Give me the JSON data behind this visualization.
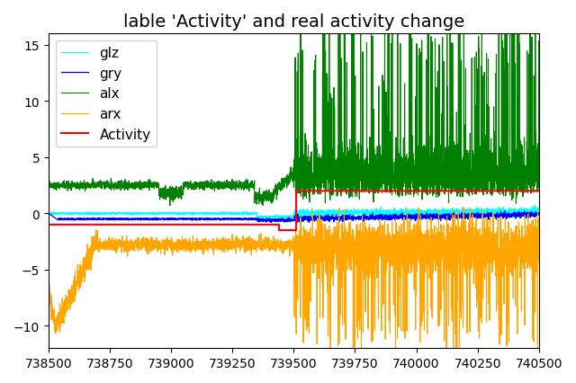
{
  "title": "lable 'Activity' and real activity change",
  "xlabel": "",
  "ylabel": "",
  "xlim": [
    738500,
    740500
  ],
  "ylim": [
    -12,
    16
  ],
  "x_start": 738500,
  "x_end": 740500,
  "n_points": 4000,
  "legend_labels": [
    "glz",
    "gry",
    "alx",
    "arx",
    "Activity"
  ],
  "legend_colors": [
    "cyan",
    "blue",
    "green",
    "orange",
    "red"
  ],
  "title_fontsize": 14,
  "tick_fontsize": 10,
  "legend_fontsize": 11,
  "activity_step_x": 739500,
  "activity_level_low": -1.0,
  "activity_level_high": 2.0
}
